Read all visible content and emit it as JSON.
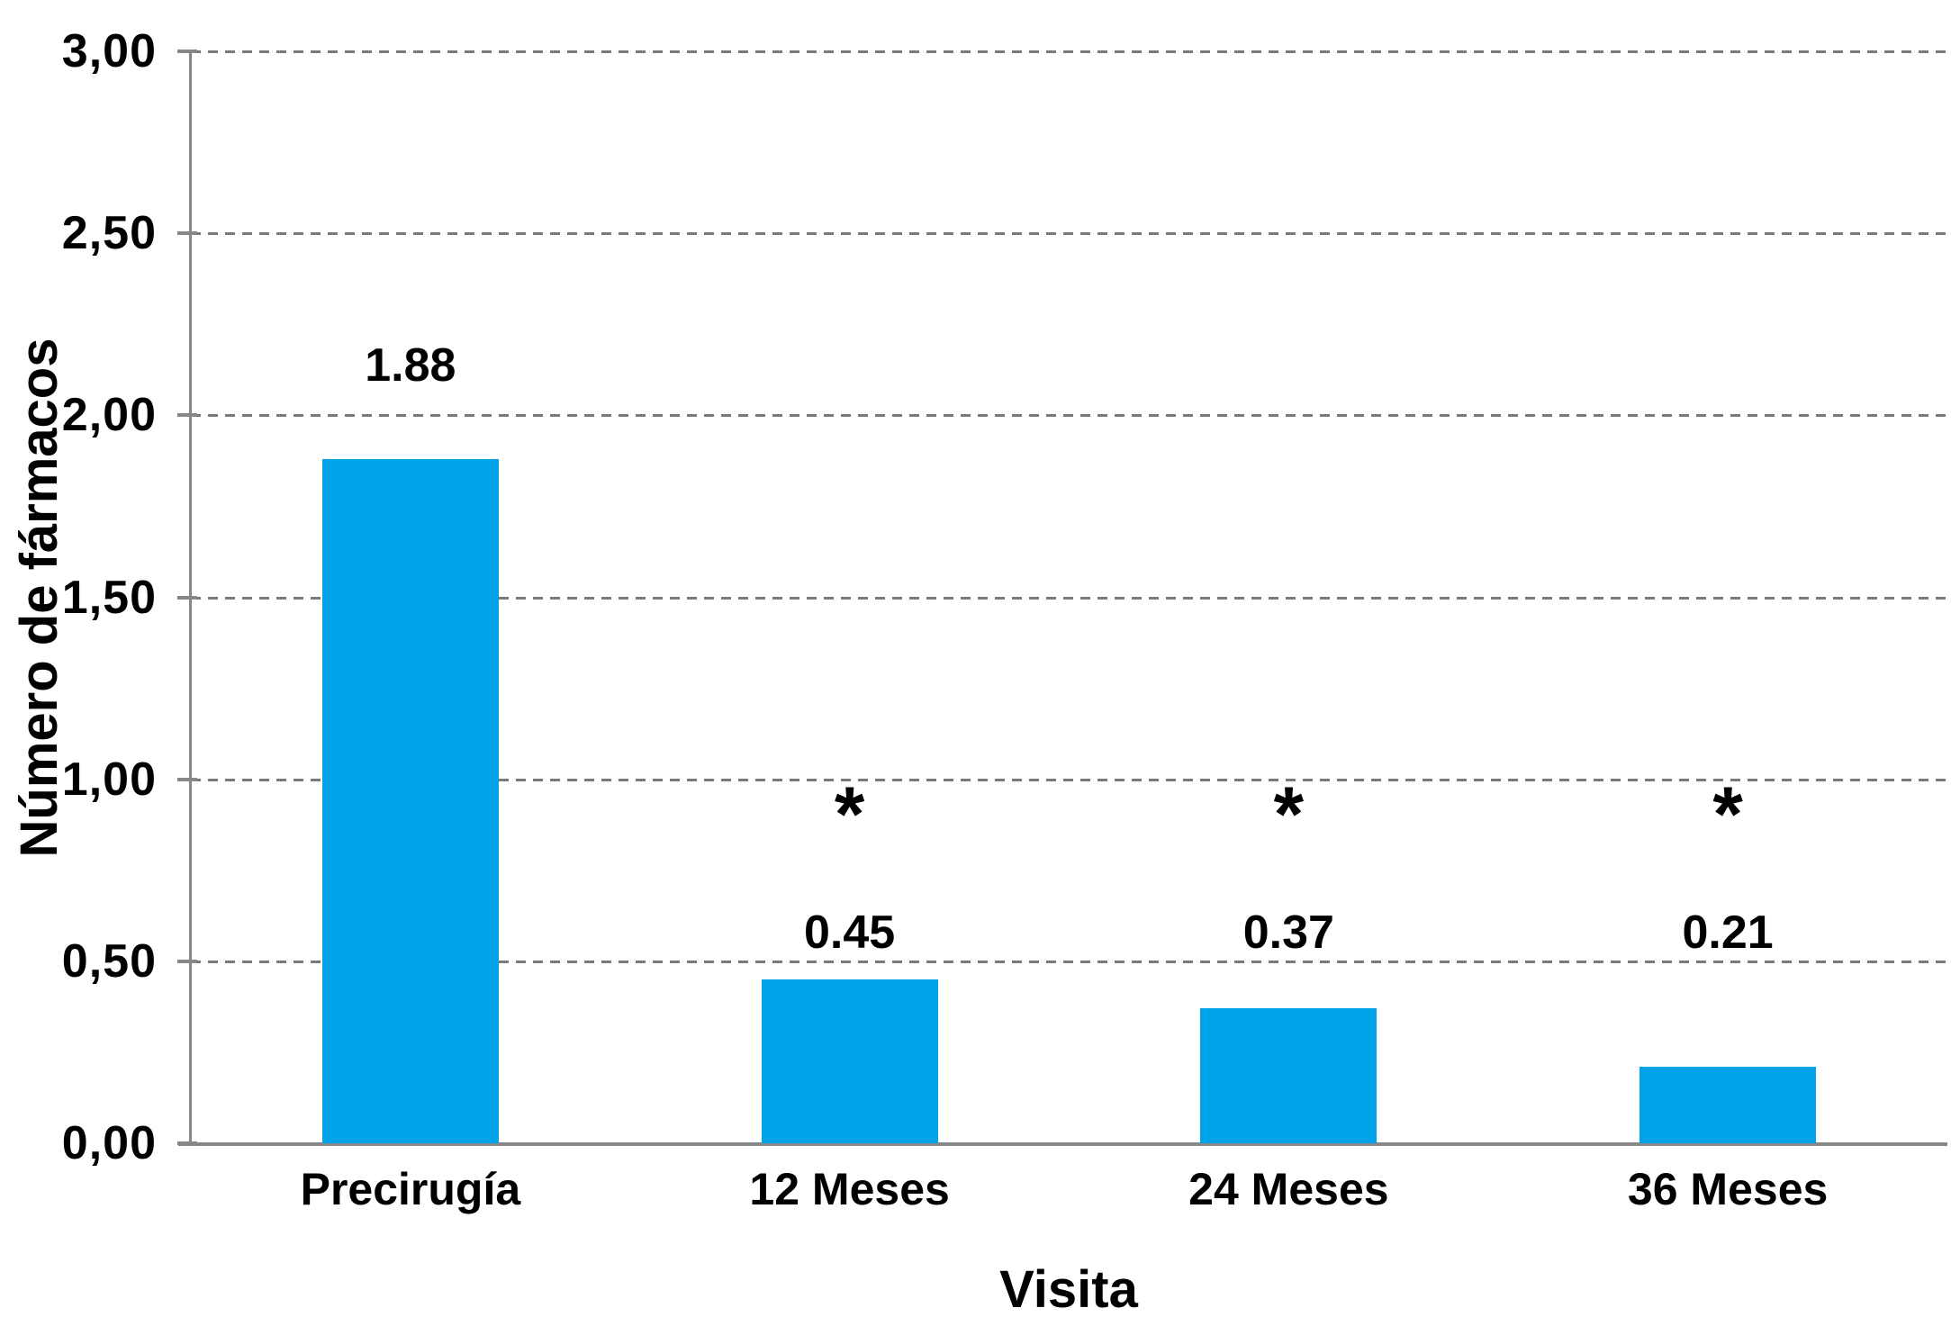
{
  "chart_data": {
    "type": "bar",
    "title": "",
    "xlabel": "Visita",
    "ylabel": "Número de fármacos",
    "categories": [
      "Precirugía",
      "12 Meses",
      "24 Meses",
      "36 Meses"
    ],
    "values": [
      1.88,
      0.45,
      0.37,
      0.21
    ],
    "value_labels": [
      "1.88",
      "0.45",
      "0.37",
      "0.21"
    ],
    "significance": [
      false,
      true,
      true,
      true
    ],
    "significance_marker": "*",
    "y_ticks": [
      {
        "label": "3,00",
        "value": 3.0
      },
      {
        "label": "2,50",
        "value": 2.5
      },
      {
        "label": "2,00",
        "value": 2.0
      },
      {
        "label": "1,50",
        "value": 1.5
      },
      {
        "label": "1,00",
        "value": 1.0
      },
      {
        "label": "0,50",
        "value": 0.5
      },
      {
        "label": "0,00",
        "value": 0.0
      }
    ],
    "ylim": [
      0,
      3
    ],
    "grid": "horizontal-dashed",
    "legend": "none",
    "bar_color": "#00A2E8",
    "axis_color": "#878787",
    "gridline_color": "#7a7a7a",
    "text_color": "#000000"
  }
}
